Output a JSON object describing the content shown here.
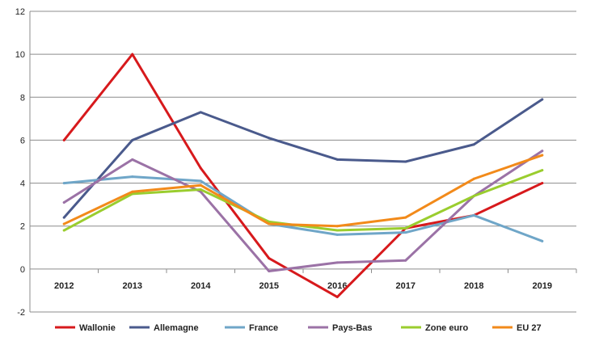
{
  "chart_data": {
    "type": "line",
    "title": "",
    "xlabel": "",
    "ylabel": "",
    "categories": [
      "2012",
      "2013",
      "2014",
      "2015",
      "2016",
      "2017",
      "2018",
      "2019"
    ],
    "ylim": [
      -2,
      12
    ],
    "yticks": [
      -2,
      0,
      2,
      4,
      6,
      8,
      10,
      12
    ],
    "grid": "horizontal",
    "legend_position": "bottom",
    "series": [
      {
        "name": "Wallonie",
        "color": "#d7191c",
        "values": [
          6.0,
          10.0,
          4.7,
          0.5,
          -1.3,
          1.9,
          2.5,
          4.0
        ]
      },
      {
        "name": "Allemagne",
        "color": "#4a5a8c",
        "values": [
          2.4,
          6.0,
          7.3,
          6.1,
          5.1,
          5.0,
          5.8,
          7.9
        ]
      },
      {
        "name": "France",
        "color": "#6fa6c8",
        "values": [
          4.0,
          4.3,
          4.1,
          2.1,
          1.6,
          1.7,
          2.5,
          1.3
        ]
      },
      {
        "name": "Pays-Bas",
        "color": "#9b72a6",
        "values": [
          3.1,
          5.1,
          3.6,
          -0.1,
          0.3,
          0.4,
          3.4,
          5.5
        ]
      },
      {
        "name": "Zone euro",
        "color": "#9acd2e",
        "values": [
          1.8,
          3.5,
          3.7,
          2.2,
          1.8,
          1.9,
          3.4,
          4.6
        ]
      },
      {
        "name": "EU 27",
        "color": "#f28a1a",
        "values": [
          2.1,
          3.6,
          3.9,
          2.1,
          2.0,
          2.4,
          4.2,
          5.3
        ]
      }
    ]
  }
}
